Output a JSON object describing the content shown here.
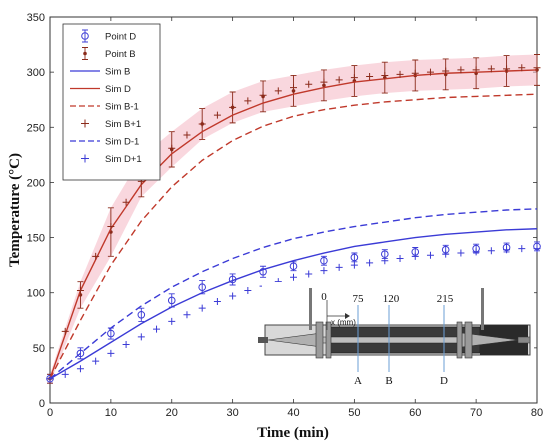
{
  "chart_data": {
    "type": "line",
    "xlabel": "Time (min)",
    "ylabel": "Temperature (°C)",
    "xlim": [
      0,
      80
    ],
    "ylim": [
      0,
      350
    ],
    "x_ticks": [
      0,
      10,
      20,
      30,
      40,
      50,
      60,
      70,
      80
    ],
    "y_ticks": [
      0,
      50,
      100,
      150,
      200,
      250,
      300,
      350
    ],
    "grid": false,
    "legend_position": "top-left",
    "colors": {
      "blue": "#3b3bd6",
      "red": "#c0392b",
      "red_dark": "#8b2a1a",
      "error_shade": "#f4b6c2"
    },
    "series": [
      {
        "name": "Point D",
        "style": "markers-circle-errorbar",
        "color": "#3b3bd6",
        "x": [
          0,
          5,
          10,
          15,
          20,
          25,
          30,
          35,
          40,
          45,
          50,
          55,
          60,
          65,
          70,
          75,
          80
        ],
        "y": [
          22,
          45,
          63,
          80,
          93,
          105,
          112,
          119,
          124,
          129,
          132,
          135,
          137,
          139,
          140,
          141,
          142
        ],
        "err": [
          4,
          5,
          5,
          6,
          6,
          6,
          5,
          5,
          4,
          4,
          4,
          4,
          4,
          4,
          4,
          4,
          4
        ]
      },
      {
        "name": "Point B",
        "style": "markers-star-errorbar",
        "color": "#8b2a1a",
        "x": [
          0,
          5,
          10,
          15,
          20,
          25,
          30,
          35,
          40,
          45,
          50,
          55,
          60,
          65,
          70,
          75,
          80
        ],
        "y": [
          22,
          98,
          155,
          205,
          230,
          253,
          268,
          278,
          283,
          288,
          292,
          295,
          297,
          298,
          299,
          301,
          302
        ],
        "err": [
          4,
          12,
          22,
          18,
          16,
          14,
          14,
          14,
          14,
          14,
          14,
          14,
          14,
          14,
          14,
          14,
          14
        ]
      },
      {
        "name": "Sim B",
        "style": "solid",
        "color": "#3b3bd6",
        "x": [
          0,
          5,
          10,
          15,
          20,
          25,
          30,
          35,
          40,
          45,
          50,
          55,
          60,
          65,
          70,
          75,
          80
        ],
        "y": [
          22,
          38,
          55,
          72,
          87,
          100,
          111,
          121,
          129,
          136,
          142,
          146,
          150,
          153,
          155,
          157,
          158
        ]
      },
      {
        "name": "Sim D",
        "style": "solid",
        "color": "#c0392b",
        "x": [
          0,
          5,
          10,
          15,
          20,
          25,
          30,
          35,
          40,
          45,
          50,
          55,
          60,
          65,
          70,
          75,
          80
        ],
        "y": [
          22,
          102,
          158,
          198,
          226,
          246,
          261,
          272,
          280,
          286,
          291,
          294,
          297,
          299,
          300,
          301,
          302
        ]
      },
      {
        "name": "Sim B-1",
        "style": "dashed",
        "color": "#c0392b",
        "x": [
          0,
          5,
          10,
          15,
          20,
          25,
          30,
          35,
          40,
          45,
          50,
          55,
          60,
          65,
          70,
          75,
          80
        ],
        "y": [
          22,
          75,
          125,
          165,
          196,
          220,
          238,
          251,
          260,
          266,
          270,
          273,
          275,
          277,
          278,
          279,
          280
        ]
      },
      {
        "name": "Sim B+1",
        "style": "markers-plus",
        "color": "#8b2a1a",
        "x": [
          0,
          2.5,
          5,
          7.5,
          10,
          12.5,
          15,
          17.5,
          20,
          22.5,
          25,
          27.5,
          30,
          32.5,
          35,
          37.5,
          40,
          42.5,
          45,
          47.5,
          50,
          52.5,
          55,
          57.5,
          60,
          62.5,
          65,
          67.5,
          70,
          72.5,
          75,
          77.5,
          80
        ],
        "y": [
          22,
          65,
          102,
          133,
          160,
          182,
          201,
          217,
          231,
          243,
          253,
          261,
          268,
          274,
          279,
          283,
          286,
          289,
          291,
          293,
          295,
          296,
          297,
          298,
          299,
          300,
          301,
          302,
          302,
          303,
          303,
          304,
          304
        ]
      },
      {
        "name": "Sim D-1",
        "style": "dashed",
        "color": "#3b3bd6",
        "x": [
          0,
          5,
          10,
          15,
          20,
          25,
          30,
          35,
          40,
          45,
          50,
          55,
          60,
          65,
          70,
          75,
          80
        ],
        "y": [
          22,
          45,
          68,
          88,
          105,
          119,
          131,
          141,
          149,
          155,
          160,
          164,
          168,
          171,
          173,
          175,
          176
        ]
      },
      {
        "name": "Sim D+1",
        "style": "markers-plus",
        "color": "#3b3bd6",
        "x": [
          0,
          2.5,
          5,
          7.5,
          10,
          12.5,
          15,
          17.5,
          20,
          22.5,
          25,
          27.5,
          30,
          32.5,
          35,
          37.5,
          40,
          42.5,
          45,
          47.5,
          50,
          52.5,
          55,
          57.5,
          60,
          62.5,
          65,
          67.5,
          70,
          72.5,
          75,
          77.5,
          80
        ],
        "y": [
          22,
          26,
          31,
          38,
          45,
          53,
          60,
          67,
          74,
          80,
          86,
          92,
          97,
          102,
          106,
          110,
          114,
          117,
          120,
          123,
          125,
          127,
          129,
          131,
          133,
          134,
          135,
          136,
          137,
          138,
          139,
          140,
          140
        ]
      }
    ],
    "inset": {
      "ruler_labels": [
        "0",
        "75",
        "120",
        "215"
      ],
      "axis_note": "x (mm)",
      "point_labels": [
        "A",
        "B",
        "D"
      ]
    }
  }
}
